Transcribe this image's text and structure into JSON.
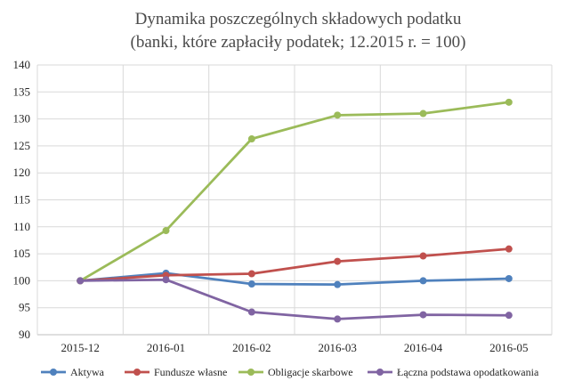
{
  "chart_data": {
    "type": "line",
    "title": "Dynamika poszczególnych składowych podatku",
    "subtitle": "(banki, które zapłaciły podatek; 12.2015 r. = 100)",
    "xlabel": "",
    "ylabel": "",
    "categories": [
      "2015-12",
      "2016-01",
      "2016-02",
      "2016-03",
      "2016-04",
      "2016-05"
    ],
    "ylim": [
      90,
      140
    ],
    "yticks": [
      "90",
      "95",
      "100",
      "105",
      "110",
      "115",
      "120",
      "125",
      "130",
      "135",
      "140"
    ],
    "grid": true,
    "legend_position": "bottom",
    "series": [
      {
        "name": "Aktywa",
        "color": "#4f81bd",
        "values": [
          100,
          101.4,
          99.4,
          99.3,
          100.0,
          100.4
        ]
      },
      {
        "name": "Fundusze własne",
        "color": "#c0504d",
        "values": [
          100,
          101.0,
          101.3,
          103.6,
          104.6,
          105.9
        ]
      },
      {
        "name": "Obligacje skarbowe",
        "color": "#9bbb59",
        "values": [
          100,
          109.3,
          126.3,
          130.7,
          131.0,
          133.1
        ]
      },
      {
        "name": "Łączna podstawa opodatkowania",
        "color": "#8064a2",
        "values": [
          100,
          100.2,
          94.2,
          92.9,
          93.7,
          93.6
        ]
      }
    ]
  }
}
